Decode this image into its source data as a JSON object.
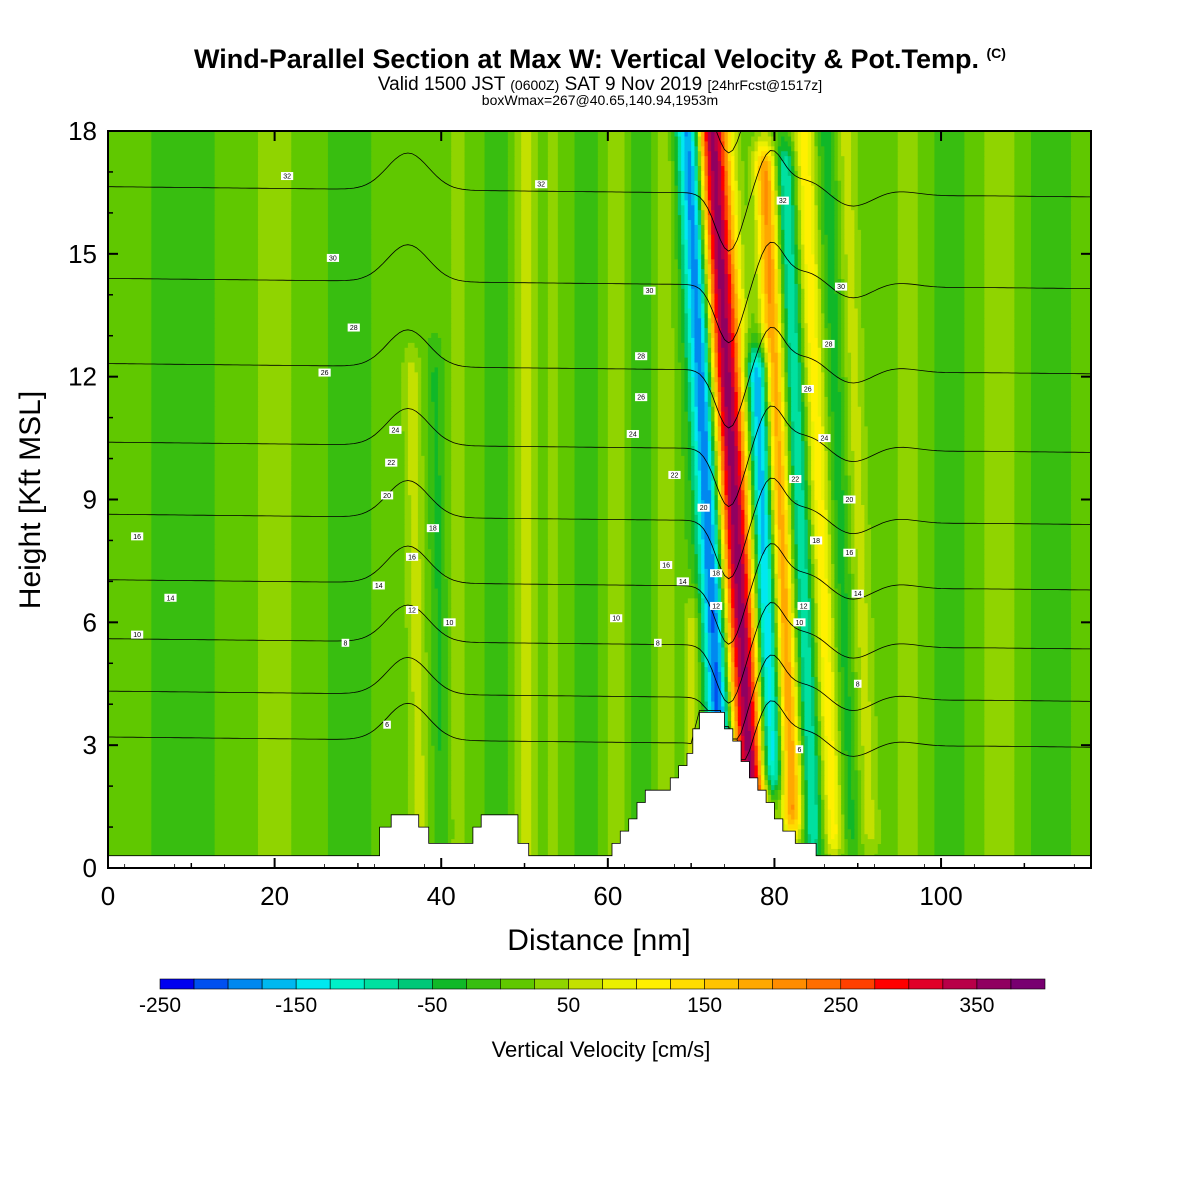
{
  "titles": {
    "main": "Wind-Parallel Section at Max W: Vertical Velocity & Pot.Temp.",
    "main_tag": "(C)",
    "valid_a": "Valid 1500 JST",
    "valid_zone": "(0600Z)",
    "valid_b": "SAT 9 Nov 2019",
    "valid_fcst": "[24hrFcst@1517z]",
    "box": "boxWmax=267@40.65,140.94,1953m"
  },
  "chart_data": {
    "type": "heatmap",
    "xlabel": "Distance [nm]",
    "ylabel": "Height [Kft MSL]",
    "xlim": [
      0,
      118
    ],
    "ylim": [
      0,
      18
    ],
    "x_ticks": [
      "0",
      "20",
      "40",
      "60",
      "80",
      "100"
    ],
    "y_ticks": [
      "0",
      "3",
      "6",
      "9",
      "12",
      "15",
      "18"
    ],
    "colorbar": {
      "label": "Vertical Velocity [cm/s]",
      "tick_labels": [
        "-250",
        "-150",
        "-50",
        "50",
        "150",
        "250",
        "350"
      ],
      "levels": [
        -250,
        -225,
        -200,
        -175,
        -150,
        -125,
        -100,
        -75,
        -50,
        -25,
        0,
        25,
        50,
        75,
        100,
        125,
        150,
        175,
        200,
        225,
        250,
        275,
        300,
        325,
        350,
        375,
        400
      ],
      "colors": [
        "#0000f0",
        "#0050f0",
        "#0088f0",
        "#00b8f0",
        "#00e8f0",
        "#00f0c8",
        "#00e0a0",
        "#00c878",
        "#10b828",
        "#38be10",
        "#60c800",
        "#90d400",
        "#c4e000",
        "#eaf000",
        "#fff000",
        "#ffdc00",
        "#ffc400",
        "#ffa800",
        "#ff8c00",
        "#ff6e00",
        "#ff4000",
        "#ff0000",
        "#e00028",
        "#b80048",
        "#900060",
        "#780070"
      ]
    },
    "terrain_kft": [
      [
        0,
        0.3
      ],
      [
        32.6,
        0.3
      ],
      [
        32.6,
        1
      ],
      [
        34,
        1
      ],
      [
        34,
        1.3
      ],
      [
        37.3,
        1.3
      ],
      [
        37.3,
        1
      ],
      [
        38.5,
        1
      ],
      [
        38.5,
        0.6
      ],
      [
        43.8,
        0.6
      ],
      [
        43.8,
        1
      ],
      [
        44.8,
        1
      ],
      [
        44.8,
        1.3
      ],
      [
        49.2,
        1.3
      ],
      [
        49.2,
        0.6
      ],
      [
        50.5,
        0.6
      ],
      [
        50.5,
        0.3
      ],
      [
        60.5,
        0.3
      ],
      [
        60.5,
        0.6
      ],
      [
        61.5,
        0.6
      ],
      [
        61.5,
        0.9
      ],
      [
        62.5,
        0.9
      ],
      [
        62.5,
        1.2
      ],
      [
        63.5,
        1.2
      ],
      [
        63.5,
        1.6
      ],
      [
        64.5,
        1.6
      ],
      [
        64.5,
        1.9
      ],
      [
        67.5,
        1.9
      ],
      [
        67.5,
        2.2
      ],
      [
        68.5,
        2.2
      ],
      [
        68.5,
        2.5
      ],
      [
        69.5,
        2.5
      ],
      [
        69.5,
        2.8
      ],
      [
        70.2,
        2.8
      ],
      [
        70.2,
        3.4
      ],
      [
        71,
        3.4
      ],
      [
        71,
        3.8
      ],
      [
        74,
        3.8
      ],
      [
        74,
        3.4
      ],
      [
        75,
        3.4
      ],
      [
        75,
        3.1
      ],
      [
        76,
        3.1
      ],
      [
        76,
        2.6
      ],
      [
        77,
        2.6
      ],
      [
        77,
        2.2
      ],
      [
        78,
        2.2
      ],
      [
        78,
        1.9
      ],
      [
        79,
        1.9
      ],
      [
        79,
        1.6
      ],
      [
        80,
        1.6
      ],
      [
        80,
        1.2
      ],
      [
        81,
        1.2
      ],
      [
        81,
        0.9
      ],
      [
        82.5,
        0.9
      ],
      [
        82.5,
        0.6
      ],
      [
        85,
        0.6
      ],
      [
        85,
        0.3
      ],
      [
        118,
        0.3
      ]
    ],
    "w_features": [
      {
        "x": 76.0,
        "lean": -3.5,
        "w": 2.0,
        "amp": 360,
        "z0": 2,
        "z1": 18
      },
      {
        "x": 72.8,
        "lean": -3.0,
        "w": 1.5,
        "amp": -230,
        "z0": 3,
        "z1": 18
      },
      {
        "x": 79.0,
        "lean": -2.0,
        "w": 1.4,
        "amp": -200,
        "z0": 2.5,
        "z1": 12
      },
      {
        "x": 81.2,
        "lean": -2.5,
        "w": 1.3,
        "amp": 200,
        "z0": 1.5,
        "z1": 17
      },
      {
        "x": 83.6,
        "lean": -2.5,
        "w": 1.2,
        "amp": -110,
        "z0": 1,
        "z1": 17
      },
      {
        "x": 86.0,
        "lean": -2.5,
        "w": 1.3,
        "amp": 110,
        "z0": 1,
        "z1": 18
      },
      {
        "x": 88.3,
        "lean": -2.0,
        "w": 1.2,
        "amp": -45,
        "z0": 1,
        "z1": 18
      },
      {
        "x": 90.5,
        "lean": -2.0,
        "w": 1.3,
        "amp": 55,
        "z0": 1,
        "z1": 18
      },
      {
        "x": 50.0,
        "lean": 0.0,
        "w": 1.4,
        "amp": 55,
        "z0": 0,
        "z1": 18
      },
      {
        "x": 47.0,
        "lean": 0.0,
        "w": 1.3,
        "amp": -30,
        "z0": 0,
        "z1": 18
      },
      {
        "x": 37.0,
        "lean": -1.0,
        "w": 1.2,
        "amp": 55,
        "z0": 1,
        "z1": 12
      },
      {
        "x": 39.8,
        "lean": -1.0,
        "w": 1.0,
        "amp": -35,
        "z0": 1,
        "z1": 12
      },
      {
        "x": 42.0,
        "lean": 0.0,
        "w": 1.3,
        "amp": 35,
        "z0": 0,
        "z1": 18
      },
      {
        "x": 53.5,
        "lean": 0.0,
        "w": 1.2,
        "amp": 25,
        "z0": 0,
        "z1": 18
      },
      {
        "x": 57.5,
        "lean": 0.0,
        "w": 1.2,
        "amp": -25,
        "z0": 0,
        "z1": 18
      },
      {
        "x": 61.0,
        "lean": 0.0,
        "w": 1.2,
        "amp": 40,
        "z0": 0,
        "z1": 18
      },
      {
        "x": 64.0,
        "lean": 0.0,
        "w": 1.2,
        "amp": -30,
        "z0": 0,
        "z1": 18
      },
      {
        "x": 67.0,
        "lean": 0.0,
        "w": 1.2,
        "amp": 35,
        "z0": 0,
        "z1": 18
      },
      {
        "x": 70.2,
        "lean": 0.0,
        "w": 1.0,
        "amp": 60,
        "z0": 1,
        "z1": 6
      },
      {
        "x": 96.0,
        "lean": 0.0,
        "w": 1.8,
        "amp": 35,
        "z0": 0,
        "z1": 18
      },
      {
        "x": 101.0,
        "lean": 0.0,
        "w": 1.5,
        "amp": -20,
        "z0": 0,
        "z1": 18
      },
      {
        "x": 107.0,
        "lean": 0.0,
        "w": 2.2,
        "amp": 35,
        "z0": 0,
        "z1": 18
      },
      {
        "x": 113.0,
        "lean": 0.0,
        "w": 2.0,
        "amp": -25,
        "z0": 0,
        "z1": 18
      },
      {
        "x": 20.0,
        "lean": 0.0,
        "w": 3.0,
        "amp": 30,
        "z0": 0,
        "z1": 18
      },
      {
        "x": 29.0,
        "lean": 0.0,
        "w": 2.0,
        "amp": -25,
        "z0": 0,
        "z1": 18
      },
      {
        "x": 9.0,
        "lean": 0.0,
        "w": 3.0,
        "amp": -25,
        "z0": 0,
        "z1": 18
      }
    ],
    "theta_levels": [
      4,
      6,
      8,
      10,
      12,
      14,
      16,
      18,
      20,
      22,
      24,
      26,
      28,
      30,
      32
    ],
    "theta_labels": [
      {
        "text": "10",
        "x": 3.5,
        "z": 5.7
      },
      {
        "text": "14",
        "x": 7.5,
        "z": 6.6
      },
      {
        "text": "16",
        "x": 3.5,
        "z": 8.1
      },
      {
        "text": "8",
        "x": 28.5,
        "z": 5.5
      },
      {
        "text": "14",
        "x": 32.5,
        "z": 6.9
      },
      {
        "text": "20",
        "x": 33.5,
        "z": 9.1
      },
      {
        "text": "22",
        "x": 34,
        "z": 9.9
      },
      {
        "text": "24",
        "x": 34.5,
        "z": 10.7
      },
      {
        "text": "26",
        "x": 26,
        "z": 12.1
      },
      {
        "text": "28",
        "x": 29.5,
        "z": 13.2
      },
      {
        "text": "30",
        "x": 27,
        "z": 14.9
      },
      {
        "text": "32",
        "x": 21.5,
        "z": 16.9
      },
      {
        "text": "6",
        "x": 33.5,
        "z": 3.5
      },
      {
        "text": "12",
        "x": 36.5,
        "z": 6.3
      },
      {
        "text": "16",
        "x": 36.5,
        "z": 7.6
      },
      {
        "text": "18",
        "x": 39,
        "z": 8.3
      },
      {
        "text": "10",
        "x": 41,
        "z": 6.0
      },
      {
        "text": "32",
        "x": 52,
        "z": 16.7
      },
      {
        "text": "10",
        "x": 61,
        "z": 6.1
      },
      {
        "text": "8",
        "x": 66,
        "z": 5.5
      },
      {
        "text": "14",
        "x": 69,
        "z": 7.0
      },
      {
        "text": "16",
        "x": 67,
        "z": 7.4
      },
      {
        "text": "22",
        "x": 68,
        "z": 9.6
      },
      {
        "text": "24",
        "x": 63,
        "z": 10.6
      },
      {
        "text": "26",
        "x": 64,
        "z": 11.5
      },
      {
        "text": "28",
        "x": 64,
        "z": 12.5
      },
      {
        "text": "30",
        "x": 65,
        "z": 14.1
      },
      {
        "text": "20",
        "x": 71.5,
        "z": 8.8
      },
      {
        "text": "18",
        "x": 73,
        "z": 7.2
      },
      {
        "text": "12",
        "x": 73,
        "z": 6.4
      },
      {
        "text": "32",
        "x": 81,
        "z": 16.3
      },
      {
        "text": "30",
        "x": 88,
        "z": 14.2
      },
      {
        "text": "28",
        "x": 86.5,
        "z": 12.8
      },
      {
        "text": "26",
        "x": 84,
        "z": 11.7
      },
      {
        "text": "24",
        "x": 86,
        "z": 10.5
      },
      {
        "text": "22",
        "x": 82.5,
        "z": 9.5
      },
      {
        "text": "20",
        "x": 89,
        "z": 9.0
      },
      {
        "text": "18",
        "x": 85,
        "z": 8.0
      },
      {
        "text": "16",
        "x": 89,
        "z": 7.7
      },
      {
        "text": "14",
        "x": 90,
        "z": 6.7
      },
      {
        "text": "12",
        "x": 83.5,
        "z": 6.4
      },
      {
        "text": "10",
        "x": 83,
        "z": 6.0
      },
      {
        "text": "8",
        "x": 90,
        "z": 4.5
      },
      {
        "text": "6",
        "x": 83,
        "z": 2.9
      }
    ]
  }
}
